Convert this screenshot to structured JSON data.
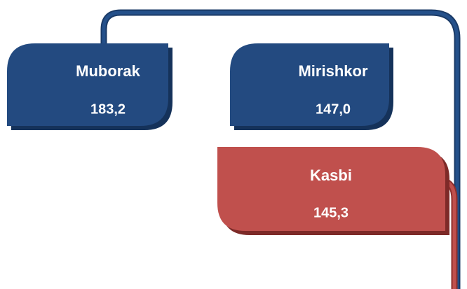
{
  "nodes": [
    {
      "label": "Muborak",
      "value": "183,2"
    },
    {
      "label": "Mirishkor",
      "value": "147,0"
    },
    {
      "label": "Kasbi",
      "value": "145,3"
    }
  ]
}
